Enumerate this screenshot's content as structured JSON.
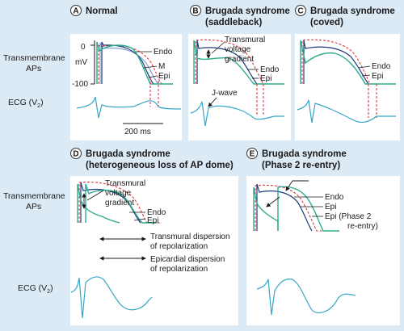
{
  "row_labels": {
    "ap_top": [
      "Transmembrane",
      "APs"
    ],
    "ecg_top": "ECG (V",
    "ecg_top_sub": "2",
    "ap_bottom": [
      "Transmembrane",
      "APs"
    ],
    "ecg_bottom": "ECG (V",
    "ecg_bottom_sub": "2"
  },
  "panels": {
    "A": {
      "letter": "A",
      "title": [
        "Normal"
      ]
    },
    "B": {
      "letter": "B",
      "title": [
        "Brugada syndrome",
        "(saddleback)"
      ]
    },
    "C": {
      "letter": "C",
      "title": [
        "Brugada syndrome",
        "(coved)"
      ]
    },
    "D": {
      "letter": "D",
      "title": [
        "Brugada syndrome",
        "(heterogeneous loss of AP dome)"
      ]
    },
    "E": {
      "letter": "E",
      "title": [
        "Brugada syndrome",
        "(Phase 2 re-entry)"
      ]
    }
  },
  "panelA": {
    "y_ticks": [
      "0",
      "-100"
    ],
    "y_unit": "mV",
    "labels": {
      "endo": "Endo",
      "m": "M",
      "epi": "Epi"
    },
    "scale_bar": "200 ms"
  },
  "panelB": {
    "gradient": [
      "Transmural",
      "voltage",
      "gradient"
    ],
    "endo": "Endo",
    "epi": "Epi",
    "jwave": "J-wave"
  },
  "panelC": {
    "endo": "Endo",
    "epi": "Epi"
  },
  "panelD": {
    "gradient": [
      "Transmural",
      "voltage",
      "gradient"
    ],
    "endo": "Endo",
    "epi": "Epi",
    "transmural_dispersion": [
      "Transmural dispersion",
      "of repolarization"
    ],
    "epicardial_dispersion": [
      "Epicardial dispersion",
      "of repolarization"
    ]
  },
  "panelE": {
    "endo": "Endo",
    "epi1": "Epi",
    "epi2": "Epi (Phase 2",
    "epi2b": "re-entry)"
  },
  "colors": {
    "background": "#dceaf6",
    "panel": "#ffffff",
    "epi": "#2bab8c",
    "endo": "#1d3a7a",
    "m_cell": "#7a9ad0",
    "reference_dashed": "#e0393e",
    "ecg": "#35a6c8"
  }
}
